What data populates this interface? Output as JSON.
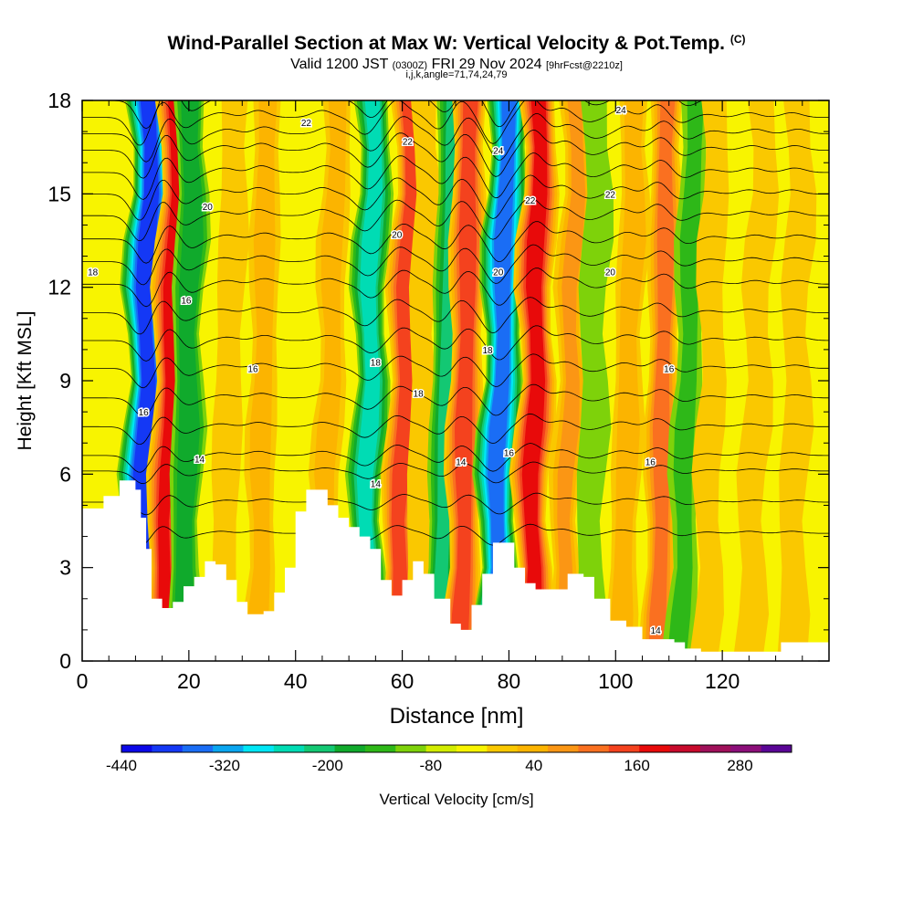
{
  "header": {
    "title": "Wind-Parallel Section at Max W: Vertical Velocity & Pot.Temp.",
    "copyright": "(C)",
    "subtitle_a": "Valid 1200 JST",
    "subtitle_b": "(0300Z)",
    "subtitle_c": "FRI 29 Nov 2024",
    "subtitle_d": "[9hrFcst@2210z]",
    "subtitle2": "i,j,k,angle=71,74,24,79"
  },
  "chart_data": {
    "type": "heatmap",
    "title": "Wind-Parallel Section at Max W: Vertical Velocity & Pot.Temp.",
    "xlabel": "Distance [nm]",
    "ylabel": "Height [Kft MSL]",
    "xlim": [
      0,
      140
    ],
    "ylim": [
      0,
      18
    ],
    "x_ticks": [
      0,
      20,
      40,
      60,
      80,
      100,
      120
    ],
    "y_ticks": [
      0,
      3,
      6,
      9,
      12,
      15,
      18
    ],
    "colorbar": {
      "label": "Vertical Velocity [cm/s]",
      "tick_labels": [
        -440,
        -320,
        -200,
        -80,
        40,
        160,
        280
      ],
      "min": -440,
      "max": 340,
      "step": 40,
      "colors": [
        "#0b08e8",
        "#1438f5",
        "#1a6df5",
        "#0aa6f0",
        "#00e6f5",
        "#00dcb4",
        "#13c873",
        "#10aa2c",
        "#2eb818",
        "#7ed20a",
        "#d2ec00",
        "#f8f400",
        "#fac800",
        "#fcb400",
        "#fb9614",
        "#fa7020",
        "#f4421e",
        "#e80a0a",
        "#c80a2c",
        "#a0105a",
        "#8c0f7a",
        "#5a0596"
      ]
    },
    "velocity_bands": [
      {
        "x": 11,
        "w": -380
      },
      {
        "x": 15,
        "w": 240
      },
      {
        "x": 19,
        "w": -150
      },
      {
        "x": 26,
        "w": 60
      },
      {
        "x": 33,
        "w": 90
      },
      {
        "x": 45,
        "w": 90
      },
      {
        "x": 53,
        "w": -220
      },
      {
        "x": 59,
        "w": 220
      },
      {
        "x": 63,
        "w": 40
      },
      {
        "x": 67,
        "w": -170
      },
      {
        "x": 71,
        "w": 220
      },
      {
        "x": 77,
        "w": -340
      },
      {
        "x": 84,
        "w": 260
      },
      {
        "x": 90,
        "w": 120
      },
      {
        "x": 95,
        "w": -60
      },
      {
        "x": 101,
        "w": 100
      },
      {
        "x": 108,
        "w": 170
      },
      {
        "x": 112,
        "w": -80
      },
      {
        "x": 117,
        "w": 40
      },
      {
        "x": 125,
        "w": 60
      },
      {
        "x": 133,
        "w": 60
      }
    ],
    "terrain_height_kft": [
      {
        "x": 0,
        "h": 4.9
      },
      {
        "x": 4,
        "h": 5.3
      },
      {
        "x": 7,
        "h": 5.8
      },
      {
        "x": 10,
        "h": 5.5
      },
      {
        "x": 11,
        "h": 4.6
      },
      {
        "x": 12,
        "h": 3.6
      },
      {
        "x": 13,
        "h": 2.0
      },
      {
        "x": 15,
        "h": 1.7
      },
      {
        "x": 17,
        "h": 1.9
      },
      {
        "x": 19,
        "h": 2.4
      },
      {
        "x": 21,
        "h": 2.7
      },
      {
        "x": 23,
        "h": 3.2
      },
      {
        "x": 25,
        "h": 3.1
      },
      {
        "x": 27,
        "h": 2.6
      },
      {
        "x": 29,
        "h": 1.9
      },
      {
        "x": 31,
        "h": 1.5
      },
      {
        "x": 34,
        "h": 1.6
      },
      {
        "x": 36,
        "h": 2.2
      },
      {
        "x": 38,
        "h": 3.0
      },
      {
        "x": 40,
        "h": 4.8
      },
      {
        "x": 42,
        "h": 5.5
      },
      {
        "x": 44,
        "h": 5.5
      },
      {
        "x": 46,
        "h": 5.0
      },
      {
        "x": 48,
        "h": 4.6
      },
      {
        "x": 50,
        "h": 4.3
      },
      {
        "x": 52,
        "h": 4.0
      },
      {
        "x": 54,
        "h": 3.6
      },
      {
        "x": 56,
        "h": 2.6
      },
      {
        "x": 58,
        "h": 2.1
      },
      {
        "x": 60,
        "h": 2.6
      },
      {
        "x": 62,
        "h": 3.2
      },
      {
        "x": 64,
        "h": 2.8
      },
      {
        "x": 66,
        "h": 2.0
      },
      {
        "x": 69,
        "h": 1.2
      },
      {
        "x": 71,
        "h": 1.0
      },
      {
        "x": 73,
        "h": 1.8
      },
      {
        "x": 75,
        "h": 2.8
      },
      {
        "x": 77,
        "h": 3.8
      },
      {
        "x": 79,
        "h": 3.8
      },
      {
        "x": 81,
        "h": 3.0
      },
      {
        "x": 83,
        "h": 2.5
      },
      {
        "x": 85,
        "h": 2.3
      },
      {
        "x": 88,
        "h": 2.3
      },
      {
        "x": 91,
        "h": 2.8
      },
      {
        "x": 94,
        "h": 2.7
      },
      {
        "x": 96,
        "h": 2.0
      },
      {
        "x": 99,
        "h": 1.3
      },
      {
        "x": 102,
        "h": 1.1
      },
      {
        "x": 105,
        "h": 0.7
      },
      {
        "x": 108,
        "h": 0.7
      },
      {
        "x": 111,
        "h": 0.6
      },
      {
        "x": 113,
        "h": 0.4
      },
      {
        "x": 116,
        "h": 0.3
      },
      {
        "x": 120,
        "h": 0.3
      },
      {
        "x": 124,
        "h": 0.3
      },
      {
        "x": 128,
        "h": 0.3
      },
      {
        "x": 131,
        "h": 0.6
      },
      {
        "x": 134,
        "h": 0.6
      },
      {
        "x": 140,
        "h": 0.6
      }
    ],
    "theta_contours": [
      {
        "label": "14",
        "base_kft": 6.6,
        "amp": 0.6
      },
      {
        "label": "16",
        "base_kft": 9.4,
        "amp": 0.7
      },
      {
        "label": "18",
        "base_kft": 12.1,
        "amp": 0.8
      },
      {
        "label": "20",
        "base_kft": 14.3,
        "amp": 0.9
      },
      {
        "label": "22",
        "base_kft": 16.4,
        "amp": 1.0
      },
      {
        "label": "24",
        "base_kft": 18.0,
        "amp": 1.0
      }
    ],
    "contour_labels": [
      {
        "text": "22",
        "x": 42,
        "y": 17.3
      },
      {
        "text": "22",
        "x": 61,
        "y": 16.7
      },
      {
        "text": "24",
        "x": 78,
        "y": 16.4
      },
      {
        "text": "24",
        "x": 101,
        "y": 17.7
      },
      {
        "text": "20",
        "x": 23.5,
        "y": 14.6
      },
      {
        "text": "22",
        "x": 84,
        "y": 14.8
      },
      {
        "text": "22",
        "x": 99,
        "y": 15.0
      },
      {
        "text": "20",
        "x": 59,
        "y": 13.7
      },
      {
        "text": "18",
        "x": 2,
        "y": 12.5
      },
      {
        "text": "20",
        "x": 78,
        "y": 12.5
      },
      {
        "text": "20",
        "x": 99,
        "y": 12.5
      },
      {
        "text": "16",
        "x": 19.5,
        "y": 11.6
      },
      {
        "text": "18",
        "x": 55,
        "y": 9.6
      },
      {
        "text": "18",
        "x": 76,
        "y": 10.0
      },
      {
        "text": "16",
        "x": 32,
        "y": 9.4
      },
      {
        "text": "16",
        "x": 110,
        "y": 9.4
      },
      {
        "text": "18",
        "x": 63,
        "y": 8.6
      },
      {
        "text": "16",
        "x": 11.5,
        "y": 8.0
      },
      {
        "text": "14",
        "x": 22,
        "y": 6.5
      },
      {
        "text": "16",
        "x": 80,
        "y": 6.7
      },
      {
        "text": "14",
        "x": 71,
        "y": 6.4
      },
      {
        "text": "16",
        "x": 106.5,
        "y": 6.4
      },
      {
        "text": "14",
        "x": 55,
        "y": 5.7
      },
      {
        "text": "14",
        "x": 107.5,
        "y": 1.0
      }
    ]
  }
}
